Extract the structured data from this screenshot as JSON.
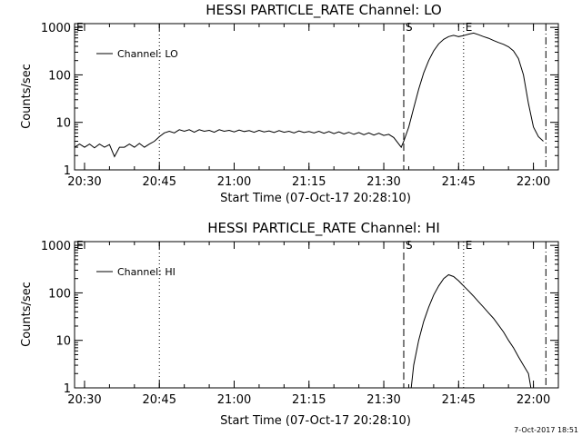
{
  "footer": {
    "stamp": "7-Oct-2017 18:51"
  },
  "chart_data": [
    {
      "type": "line",
      "title": "HESSI PARTICLE_RATE Channel: LO",
      "xlabel": "Start Time (07-Oct-17 20:28:10)",
      "ylabel": "Counts/sec",
      "yscale": "log",
      "xlim": [
        "20:28",
        "22:05"
      ],
      "ylim": [
        1,
        1200
      ],
      "x_ticks": [
        "20:30",
        "20:45",
        "21:00",
        "21:15",
        "21:30",
        "21:45",
        "22:00"
      ],
      "y_ticks": [
        "1",
        "10",
        "100",
        "1000"
      ],
      "legend": {
        "position": "top-left",
        "entries": [
          "Channel: LO"
        ]
      },
      "markers": [
        {
          "time": "20:28",
          "label": "E",
          "style": "none"
        },
        {
          "time": "20:45",
          "label": "",
          "style": "dotted"
        },
        {
          "time": "21:34",
          "label": "S",
          "style": "dashed"
        },
        {
          "time": "21:46",
          "label": "E",
          "style": "dotted"
        },
        {
          "time": "22:02.5",
          "label": "",
          "style": "dash-dot"
        }
      ],
      "series": [
        {
          "name": "Channel: LO",
          "points": [
            [
              "20:28",
              3.0
            ],
            [
              "20:29",
              3.5
            ],
            [
              "20:30",
              3.0
            ],
            [
              "20:31",
              3.5
            ],
            [
              "20:32",
              2.9
            ],
            [
              "20:33",
              3.5
            ],
            [
              "20:34",
              3.0
            ],
            [
              "20:35",
              3.4
            ],
            [
              "20:36",
              1.9
            ],
            [
              "20:37",
              3.0
            ],
            [
              "20:38",
              3.0
            ],
            [
              "20:39",
              3.5
            ],
            [
              "20:40",
              3.0
            ],
            [
              "20:41",
              3.6
            ],
            [
              "20:42",
              3.0
            ],
            [
              "20:43",
              3.5
            ],
            [
              "20:44",
              4.0
            ],
            [
              "20:45",
              5.0
            ],
            [
              "20:46",
              6.0
            ],
            [
              "20:47",
              6.5
            ],
            [
              "20:48",
              6.0
            ],
            [
              "20:49",
              7.0
            ],
            [
              "20:50",
              6.5
            ],
            [
              "20:51",
              7.0
            ],
            [
              "20:52",
              6.2
            ],
            [
              "20:53",
              7.0
            ],
            [
              "20:54",
              6.5
            ],
            [
              "20:55",
              6.8
            ],
            [
              "20:56",
              6.2
            ],
            [
              "20:57",
              7.0
            ],
            [
              "20:58",
              6.5
            ],
            [
              "20:59",
              6.8
            ],
            [
              "21:00",
              6.3
            ],
            [
              "21:01",
              6.9
            ],
            [
              "21:02",
              6.4
            ],
            [
              "21:03",
              6.7
            ],
            [
              "21:04",
              6.2
            ],
            [
              "21:05",
              6.8
            ],
            [
              "21:06",
              6.3
            ],
            [
              "21:07",
              6.6
            ],
            [
              "21:08",
              6.1
            ],
            [
              "21:09",
              6.7
            ],
            [
              "21:10",
              6.2
            ],
            [
              "21:11",
              6.5
            ],
            [
              "21:12",
              6.0
            ],
            [
              "21:13",
              6.6
            ],
            [
              "21:14",
              6.1
            ],
            [
              "21:15",
              6.4
            ],
            [
              "21:16",
              6.0
            ],
            [
              "21:17",
              6.5
            ],
            [
              "21:18",
              5.9
            ],
            [
              "21:19",
              6.4
            ],
            [
              "21:20",
              5.8
            ],
            [
              "21:21",
              6.3
            ],
            [
              "21:22",
              5.7
            ],
            [
              "21:23",
              6.2
            ],
            [
              "21:24",
              5.6
            ],
            [
              "21:25",
              6.1
            ],
            [
              "21:26",
              5.5
            ],
            [
              "21:27",
              6.0
            ],
            [
              "21:28",
              5.4
            ],
            [
              "21:29",
              5.9
            ],
            [
              "21:30",
              5.3
            ],
            [
              "21:31",
              5.6
            ],
            [
              "21:32",
              4.8
            ],
            [
              "21:33",
              3.5
            ],
            [
              "21:33.5",
              3.0
            ],
            [
              "21:34",
              4.0
            ],
            [
              "21:35",
              8.0
            ],
            [
              "21:36",
              20
            ],
            [
              "21:37",
              50
            ],
            [
              "21:38",
              110
            ],
            [
              "21:39",
              200
            ],
            [
              "21:40",
              320
            ],
            [
              "21:41",
              450
            ],
            [
              "21:42",
              560
            ],
            [
              "21:43",
              640
            ],
            [
              "21:44",
              680
            ],
            [
              "21:45",
              640
            ],
            [
              "21:46",
              670
            ],
            [
              "21:47",
              720
            ],
            [
              "21:48",
              760
            ],
            [
              "21:49",
              700
            ],
            [
              "21:50",
              640
            ],
            [
              "21:51",
              590
            ],
            [
              "21:52",
              530
            ],
            [
              "21:53",
              480
            ],
            [
              "21:54",
              440
            ],
            [
              "21:55",
              390
            ],
            [
              "21:56",
              320
            ],
            [
              "21:57",
              220
            ],
            [
              "21:58",
              100
            ],
            [
              "21:59",
              25
            ],
            [
              "22:00",
              8.0
            ],
            [
              "22:01",
              5.0
            ],
            [
              "22:02",
              4.0
            ]
          ]
        }
      ]
    },
    {
      "type": "line",
      "title": "HESSI PARTICLE_RATE Channel: HI",
      "xlabel": "Start Time (07-Oct-17 20:28:10)",
      "ylabel": "Counts/sec",
      "yscale": "log",
      "xlim": [
        "20:28",
        "22:05"
      ],
      "ylim": [
        1,
        1200
      ],
      "x_ticks": [
        "20:30",
        "20:45",
        "21:00",
        "21:15",
        "21:30",
        "21:45",
        "22:00"
      ],
      "y_ticks": [
        "1",
        "10",
        "100",
        "1000"
      ],
      "legend": {
        "position": "top-left",
        "entries": [
          "Channel: HI"
        ]
      },
      "markers": [
        {
          "time": "20:28",
          "label": "E",
          "style": "none"
        },
        {
          "time": "20:45",
          "label": "",
          "style": "dotted"
        },
        {
          "time": "21:34",
          "label": "S",
          "style": "dashed"
        },
        {
          "time": "21:46",
          "label": "E",
          "style": "dotted"
        },
        {
          "time": "22:02.5",
          "label": "",
          "style": "dash-dot"
        }
      ],
      "series": [
        {
          "name": "Channel: HI",
          "points": [
            [
              "21:35.5",
              1.0
            ],
            [
              "21:36",
              3.0
            ],
            [
              "21:37",
              10
            ],
            [
              "21:38",
              25
            ],
            [
              "21:39",
              50
            ],
            [
              "21:40",
              90
            ],
            [
              "21:41",
              140
            ],
            [
              "21:42",
              200
            ],
            [
              "21:43",
              240
            ],
            [
              "21:44",
              220
            ],
            [
              "21:45",
              180
            ],
            [
              "21:46",
              140
            ],
            [
              "21:47",
              110
            ],
            [
              "21:48",
              85
            ],
            [
              "21:49",
              65
            ],
            [
              "21:50",
              50
            ],
            [
              "21:51",
              38
            ],
            [
              "21:52",
              29
            ],
            [
              "21:53",
              21
            ],
            [
              "21:54",
              15
            ],
            [
              "21:55",
              10
            ],
            [
              "21:56",
              7.0
            ],
            [
              "21:57",
              4.5
            ],
            [
              "21:58",
              3.0
            ],
            [
              "21:59",
              2.0
            ],
            [
              "21:59.5",
              1.0
            ]
          ]
        }
      ]
    }
  ]
}
